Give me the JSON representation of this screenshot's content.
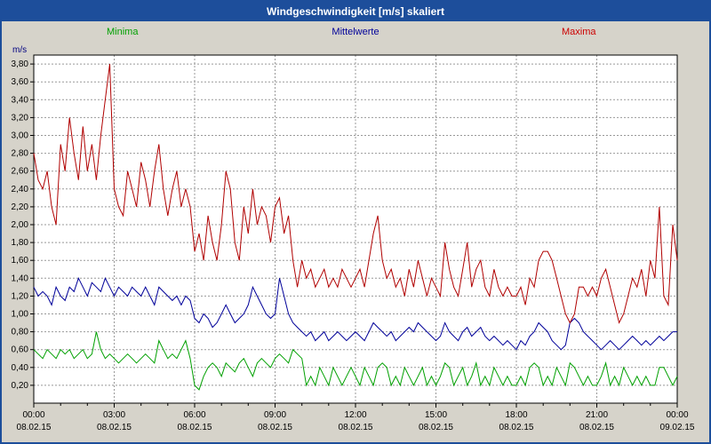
{
  "window": {
    "title": "Windgeschwindigkeit [m/s] skaliert"
  },
  "legend": [
    {
      "label": "Minima",
      "color": "#00a000"
    },
    {
      "label": "Mittelwerte",
      "color": "#000099"
    },
    {
      "label": "Maxima",
      "color": "#cc0000"
    }
  ],
  "chart_data": {
    "type": "line",
    "title": "Windgeschwindigkeit [m/s] skaliert",
    "ylabel": "m/s",
    "xlabel": "",
    "ylim": [
      0,
      3.9
    ],
    "ytick_step": 0.2,
    "grid": true,
    "plot_bg": "#ffffff",
    "x_range_hours": 24,
    "xticks": [
      {
        "time": "00:00",
        "date": "08.02.15"
      },
      {
        "time": "03:00",
        "date": "08.02.15"
      },
      {
        "time": "06:00",
        "date": "08.02.15"
      },
      {
        "time": "09:00",
        "date": "08.02.15"
      },
      {
        "time": "12:00",
        "date": "08.02.15"
      },
      {
        "time": "15:00",
        "date": "08.02.15"
      },
      {
        "time": "18:00",
        "date": "08.02.15"
      },
      {
        "time": "21:00",
        "date": "08.02.15"
      },
      {
        "time": "00:00",
        "date": "09.02.15"
      }
    ],
    "series": [
      {
        "name": "Minima",
        "color": "#00a000",
        "values": [
          0.6,
          0.55,
          0.5,
          0.6,
          0.55,
          0.5,
          0.6,
          0.55,
          0.6,
          0.5,
          0.55,
          0.6,
          0.5,
          0.55,
          0.8,
          0.6,
          0.5,
          0.55,
          0.5,
          0.45,
          0.5,
          0.55,
          0.5,
          0.45,
          0.5,
          0.55,
          0.5,
          0.45,
          0.7,
          0.6,
          0.5,
          0.55,
          0.5,
          0.6,
          0.7,
          0.5,
          0.2,
          0.15,
          0.3,
          0.4,
          0.45,
          0.4,
          0.3,
          0.45,
          0.4,
          0.35,
          0.45,
          0.5,
          0.4,
          0.3,
          0.45,
          0.5,
          0.45,
          0.4,
          0.5,
          0.55,
          0.5,
          0.45,
          0.6,
          0.55,
          0.5,
          0.2,
          0.3,
          0.2,
          0.4,
          0.3,
          0.2,
          0.4,
          0.3,
          0.2,
          0.3,
          0.4,
          0.3,
          0.2,
          0.4,
          0.3,
          0.2,
          0.4,
          0.45,
          0.4,
          0.2,
          0.3,
          0.2,
          0.4,
          0.3,
          0.2,
          0.3,
          0.4,
          0.2,
          0.3,
          0.2,
          0.3,
          0.45,
          0.4,
          0.2,
          0.3,
          0.4,
          0.2,
          0.3,
          0.45,
          0.2,
          0.3,
          0.2,
          0.4,
          0.3,
          0.2,
          0.3,
          0.2,
          0.2,
          0.3,
          0.2,
          0.4,
          0.45,
          0.4,
          0.2,
          0.3,
          0.2,
          0.4,
          0.3,
          0.2,
          0.45,
          0.4,
          0.3,
          0.2,
          0.3,
          0.2,
          0.2,
          0.3,
          0.45,
          0.2,
          0.3,
          0.2,
          0.4,
          0.3,
          0.2,
          0.3,
          0.2,
          0.3,
          0.2,
          0.2,
          0.4,
          0.4,
          0.3,
          0.2,
          0.3
        ]
      },
      {
        "name": "Mittelwerte",
        "color": "#000099",
        "values": [
          1.3,
          1.2,
          1.25,
          1.2,
          1.1,
          1.3,
          1.2,
          1.15,
          1.3,
          1.25,
          1.4,
          1.3,
          1.2,
          1.35,
          1.3,
          1.25,
          1.4,
          1.3,
          1.2,
          1.3,
          1.25,
          1.2,
          1.3,
          1.25,
          1.2,
          1.3,
          1.2,
          1.1,
          1.3,
          1.25,
          1.2,
          1.15,
          1.2,
          1.1,
          1.2,
          1.15,
          0.95,
          0.9,
          1.0,
          0.95,
          0.85,
          0.9,
          1.0,
          1.1,
          1.0,
          0.9,
          0.95,
          1.0,
          1.1,
          1.3,
          1.2,
          1.1,
          1.0,
          0.95,
          1.0,
          1.4,
          1.2,
          1.0,
          0.9,
          0.85,
          0.8,
          0.75,
          0.8,
          0.7,
          0.75,
          0.8,
          0.7,
          0.75,
          0.8,
          0.75,
          0.7,
          0.75,
          0.8,
          0.75,
          0.7,
          0.8,
          0.9,
          0.85,
          0.8,
          0.75,
          0.8,
          0.7,
          0.75,
          0.8,
          0.85,
          0.8,
          0.9,
          0.85,
          0.8,
          0.75,
          0.7,
          0.75,
          0.9,
          0.8,
          0.75,
          0.7,
          0.8,
          0.85,
          0.75,
          0.8,
          0.85,
          0.75,
          0.7,
          0.75,
          0.7,
          0.65,
          0.7,
          0.65,
          0.6,
          0.7,
          0.65,
          0.75,
          0.8,
          0.9,
          0.85,
          0.8,
          0.7,
          0.65,
          0.6,
          0.65,
          0.9,
          0.95,
          0.9,
          0.8,
          0.75,
          0.7,
          0.65,
          0.6,
          0.65,
          0.7,
          0.65,
          0.6,
          0.65,
          0.7,
          0.75,
          0.7,
          0.65,
          0.7,
          0.65,
          0.7,
          0.75,
          0.7,
          0.75,
          0.8,
          0.8
        ]
      },
      {
        "name": "Maxima",
        "color": "#b00000",
        "values": [
          2.8,
          2.5,
          2.4,
          2.6,
          2.2,
          2.0,
          2.9,
          2.6,
          3.2,
          2.8,
          2.5,
          3.1,
          2.6,
          2.9,
          2.5,
          3.0,
          3.4,
          3.8,
          2.4,
          2.2,
          2.1,
          2.6,
          2.4,
          2.2,
          2.7,
          2.5,
          2.2,
          2.6,
          2.9,
          2.4,
          2.1,
          2.4,
          2.6,
          2.2,
          2.4,
          2.2,
          1.7,
          1.9,
          1.6,
          2.1,
          1.8,
          1.6,
          2.0,
          2.6,
          2.4,
          1.8,
          1.6,
          2.2,
          1.9,
          2.4,
          2.0,
          2.2,
          2.1,
          1.8,
          2.2,
          2.3,
          1.9,
          2.1,
          1.6,
          1.3,
          1.6,
          1.4,
          1.5,
          1.3,
          1.4,
          1.5,
          1.3,
          1.4,
          1.3,
          1.5,
          1.4,
          1.3,
          1.4,
          1.5,
          1.3,
          1.6,
          1.9,
          2.1,
          1.6,
          1.4,
          1.5,
          1.3,
          1.4,
          1.2,
          1.5,
          1.3,
          1.6,
          1.4,
          1.2,
          1.4,
          1.3,
          1.2,
          1.8,
          1.5,
          1.3,
          1.2,
          1.5,
          1.8,
          1.3,
          1.5,
          1.6,
          1.3,
          1.2,
          1.5,
          1.3,
          1.2,
          1.3,
          1.2,
          1.2,
          1.3,
          1.1,
          1.4,
          1.3,
          1.6,
          1.7,
          1.7,
          1.6,
          1.4,
          1.2,
          1.0,
          0.9,
          1.0,
          1.3,
          1.3,
          1.2,
          1.3,
          1.2,
          1.4,
          1.5,
          1.3,
          1.1,
          0.9,
          1.0,
          1.2,
          1.4,
          1.3,
          1.5,
          1.2,
          1.6,
          1.4,
          2.2,
          1.2,
          1.1,
          2.0,
          1.6
        ]
      }
    ]
  }
}
